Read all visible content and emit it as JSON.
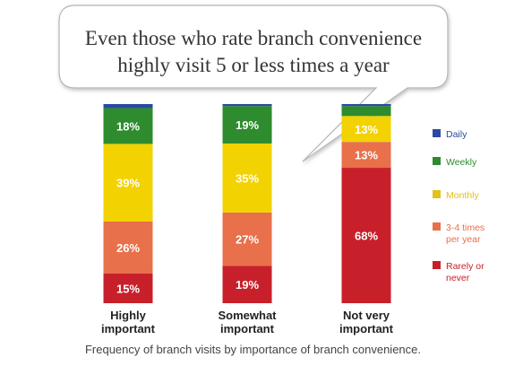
{
  "callout": {
    "line1": "Even those who rate branch convenience",
    "line2": "highly visit 5 or less times a year"
  },
  "caption": "Frequency of branch visits by importance of branch convenience.",
  "legend": [
    {
      "line1": "Daily",
      "line2": "",
      "color": "#2b4aa0"
    },
    {
      "line1": "Weekly",
      "line2": "",
      "color": "#2e8b2e"
    },
    {
      "line1": "Monthly",
      "line2": "",
      "color": "#e0c21a"
    },
    {
      "line1": "3-4 times",
      "line2": "per year",
      "color": "#e8704a"
    },
    {
      "line1": "Rarely or",
      "line2": "never",
      "color": "#c8202a"
    }
  ],
  "chart_data": {
    "type": "bar",
    "stacked": true,
    "categories": [
      {
        "line1": "Highly",
        "line2": "important"
      },
      {
        "line1": "Somewhat",
        "line2": "important"
      },
      {
        "line1": "Not very",
        "line2": "important"
      }
    ],
    "series": [
      {
        "name": "Rarely or never",
        "color": "#c8202a",
        "values": [
          15,
          19,
          68
        ],
        "labels": [
          "15%",
          "19%",
          "68%"
        ]
      },
      {
        "name": "3-4 times per year",
        "color": "#e8704a",
        "values": [
          26,
          27,
          13
        ],
        "labels": [
          "26%",
          "27%",
          "13%"
        ]
      },
      {
        "name": "Monthly",
        "color": "#f2d200",
        "values": [
          39,
          35,
          13
        ],
        "labels": [
          "39%",
          "35%",
          "13%"
        ]
      },
      {
        "name": "Weekly",
        "color": "#2e8b2e",
        "values": [
          18,
          19,
          5
        ],
        "labels": [
          "18%",
          "19%",
          ""
        ]
      },
      {
        "name": "Daily",
        "color": "#2b4aa0",
        "values": [
          2,
          1,
          1
        ],
        "labels": [
          "",
          "",
          ""
        ]
      }
    ],
    "ylim": [
      0,
      100
    ],
    "grid": false,
    "legend_position": "right"
  }
}
